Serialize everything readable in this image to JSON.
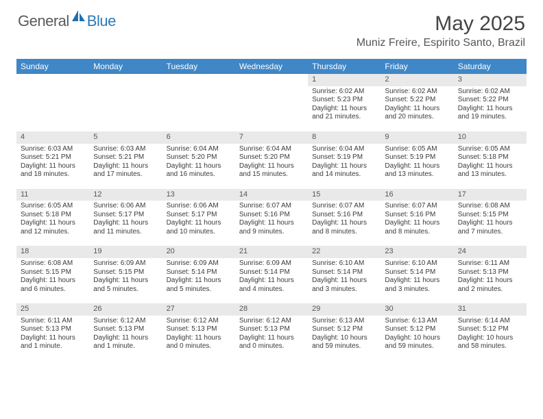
{
  "brand": {
    "text_general": "General",
    "text_blue": "Blue"
  },
  "header": {
    "title": "May 2025",
    "location": "Muniz Freire, Espirito Santo, Brazil"
  },
  "colors": {
    "header_bg": "#3f87c6",
    "header_text": "#ffffff",
    "daynum_bg": "#e9e9e9",
    "body_text": "#3a3a3a",
    "brand_gray": "#5a5a5a",
    "brand_blue": "#2a7ab8"
  },
  "days_of_week": [
    "Sunday",
    "Monday",
    "Tuesday",
    "Wednesday",
    "Thursday",
    "Friday",
    "Saturday"
  ],
  "weeks": [
    {
      "nums": [
        "",
        "",
        "",
        "",
        "1",
        "2",
        "3"
      ],
      "cells": [
        null,
        null,
        null,
        null,
        {
          "sr": "Sunrise: 6:02 AM",
          "ss": "Sunset: 5:23 PM",
          "dl": "Daylight: 11 hours and 21 minutes."
        },
        {
          "sr": "Sunrise: 6:02 AM",
          "ss": "Sunset: 5:22 PM",
          "dl": "Daylight: 11 hours and 20 minutes."
        },
        {
          "sr": "Sunrise: 6:02 AM",
          "ss": "Sunset: 5:22 PM",
          "dl": "Daylight: 11 hours and 19 minutes."
        }
      ]
    },
    {
      "nums": [
        "4",
        "5",
        "6",
        "7",
        "8",
        "9",
        "10"
      ],
      "cells": [
        {
          "sr": "Sunrise: 6:03 AM",
          "ss": "Sunset: 5:21 PM",
          "dl": "Daylight: 11 hours and 18 minutes."
        },
        {
          "sr": "Sunrise: 6:03 AM",
          "ss": "Sunset: 5:21 PM",
          "dl": "Daylight: 11 hours and 17 minutes."
        },
        {
          "sr": "Sunrise: 6:04 AM",
          "ss": "Sunset: 5:20 PM",
          "dl": "Daylight: 11 hours and 16 minutes."
        },
        {
          "sr": "Sunrise: 6:04 AM",
          "ss": "Sunset: 5:20 PM",
          "dl": "Daylight: 11 hours and 15 minutes."
        },
        {
          "sr": "Sunrise: 6:04 AM",
          "ss": "Sunset: 5:19 PM",
          "dl": "Daylight: 11 hours and 14 minutes."
        },
        {
          "sr": "Sunrise: 6:05 AM",
          "ss": "Sunset: 5:19 PM",
          "dl": "Daylight: 11 hours and 13 minutes."
        },
        {
          "sr": "Sunrise: 6:05 AM",
          "ss": "Sunset: 5:18 PM",
          "dl": "Daylight: 11 hours and 13 minutes."
        }
      ]
    },
    {
      "nums": [
        "11",
        "12",
        "13",
        "14",
        "15",
        "16",
        "17"
      ],
      "cells": [
        {
          "sr": "Sunrise: 6:05 AM",
          "ss": "Sunset: 5:18 PM",
          "dl": "Daylight: 11 hours and 12 minutes."
        },
        {
          "sr": "Sunrise: 6:06 AM",
          "ss": "Sunset: 5:17 PM",
          "dl": "Daylight: 11 hours and 11 minutes."
        },
        {
          "sr": "Sunrise: 6:06 AM",
          "ss": "Sunset: 5:17 PM",
          "dl": "Daylight: 11 hours and 10 minutes."
        },
        {
          "sr": "Sunrise: 6:07 AM",
          "ss": "Sunset: 5:16 PM",
          "dl": "Daylight: 11 hours and 9 minutes."
        },
        {
          "sr": "Sunrise: 6:07 AM",
          "ss": "Sunset: 5:16 PM",
          "dl": "Daylight: 11 hours and 8 minutes."
        },
        {
          "sr": "Sunrise: 6:07 AM",
          "ss": "Sunset: 5:16 PM",
          "dl": "Daylight: 11 hours and 8 minutes."
        },
        {
          "sr": "Sunrise: 6:08 AM",
          "ss": "Sunset: 5:15 PM",
          "dl": "Daylight: 11 hours and 7 minutes."
        }
      ]
    },
    {
      "nums": [
        "18",
        "19",
        "20",
        "21",
        "22",
        "23",
        "24"
      ],
      "cells": [
        {
          "sr": "Sunrise: 6:08 AM",
          "ss": "Sunset: 5:15 PM",
          "dl": "Daylight: 11 hours and 6 minutes."
        },
        {
          "sr": "Sunrise: 6:09 AM",
          "ss": "Sunset: 5:15 PM",
          "dl": "Daylight: 11 hours and 5 minutes."
        },
        {
          "sr": "Sunrise: 6:09 AM",
          "ss": "Sunset: 5:14 PM",
          "dl": "Daylight: 11 hours and 5 minutes."
        },
        {
          "sr": "Sunrise: 6:09 AM",
          "ss": "Sunset: 5:14 PM",
          "dl": "Daylight: 11 hours and 4 minutes."
        },
        {
          "sr": "Sunrise: 6:10 AM",
          "ss": "Sunset: 5:14 PM",
          "dl": "Daylight: 11 hours and 3 minutes."
        },
        {
          "sr": "Sunrise: 6:10 AM",
          "ss": "Sunset: 5:14 PM",
          "dl": "Daylight: 11 hours and 3 minutes."
        },
        {
          "sr": "Sunrise: 6:11 AM",
          "ss": "Sunset: 5:13 PM",
          "dl": "Daylight: 11 hours and 2 minutes."
        }
      ]
    },
    {
      "nums": [
        "25",
        "26",
        "27",
        "28",
        "29",
        "30",
        "31"
      ],
      "cells": [
        {
          "sr": "Sunrise: 6:11 AM",
          "ss": "Sunset: 5:13 PM",
          "dl": "Daylight: 11 hours and 1 minute."
        },
        {
          "sr": "Sunrise: 6:12 AM",
          "ss": "Sunset: 5:13 PM",
          "dl": "Daylight: 11 hours and 1 minute."
        },
        {
          "sr": "Sunrise: 6:12 AM",
          "ss": "Sunset: 5:13 PM",
          "dl": "Daylight: 11 hours and 0 minutes."
        },
        {
          "sr": "Sunrise: 6:12 AM",
          "ss": "Sunset: 5:13 PM",
          "dl": "Daylight: 11 hours and 0 minutes."
        },
        {
          "sr": "Sunrise: 6:13 AM",
          "ss": "Sunset: 5:12 PM",
          "dl": "Daylight: 10 hours and 59 minutes."
        },
        {
          "sr": "Sunrise: 6:13 AM",
          "ss": "Sunset: 5:12 PM",
          "dl": "Daylight: 10 hours and 59 minutes."
        },
        {
          "sr": "Sunrise: 6:14 AM",
          "ss": "Sunset: 5:12 PM",
          "dl": "Daylight: 10 hours and 58 minutes."
        }
      ]
    }
  ]
}
